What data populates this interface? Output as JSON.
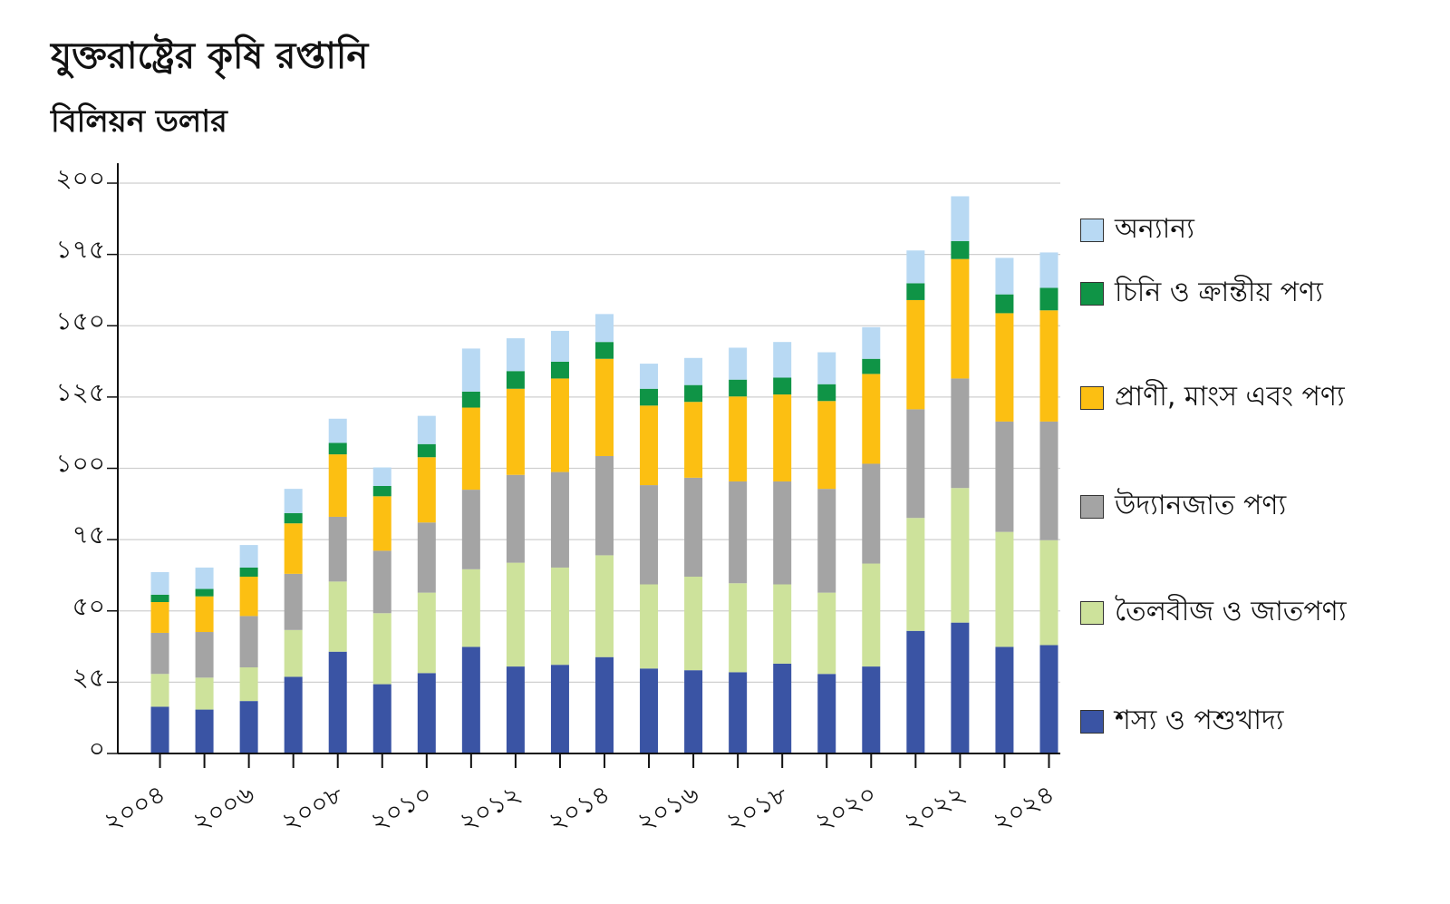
{
  "header": {
    "title": "যুক্তরাষ্ট্রের কৃষি রপ্তানি",
    "subtitle": "বিলিয়ন ডলার"
  },
  "chart_data": {
    "type": "bar",
    "stacked": true,
    "title": "যুক্তরাষ্ট্রের কৃষি রপ্তানি",
    "subtitle": "বিলিয়ন ডলার",
    "xlabel": "",
    "ylabel": "বিলিয়ন ডলার",
    "ylim": [
      0,
      200
    ],
    "yticks": [
      0,
      25,
      50,
      75,
      100,
      125,
      150,
      175,
      200
    ],
    "ytick_labels": [
      "০",
      "২৫",
      "৫০",
      "৭৫",
      "১০০",
      "১২৫",
      "১৫০",
      "১৭৫",
      "২০০"
    ],
    "grid": true,
    "legend_position": "right",
    "categories": [
      "2004",
      "2005",
      "2006",
      "2007",
      "2008",
      "2009",
      "2010",
      "2011",
      "2012",
      "2013",
      "2014",
      "2015",
      "2016",
      "2017",
      "2018",
      "2019",
      "2020",
      "2021",
      "2022",
      "2023",
      "2024"
    ],
    "xtick_labels": [
      "২০০৪",
      "",
      "২০০৬",
      "",
      "২০০৮",
      "",
      "২০১০",
      "",
      "২০১২",
      "",
      "২০১৪",
      "",
      "২০১৬",
      "",
      "২০১৮",
      "",
      "২০২০",
      "",
      "২০২২",
      "",
      "২০২৪"
    ],
    "series": [
      {
        "name": "শস্য ও পশুখাদ্য",
        "color": "#3a54a4",
        "values": [
          16.4,
          15.4,
          18.4,
          26.9,
          35.7,
          24.3,
          28.2,
          37.4,
          30.5,
          31.1,
          33.8,
          29.8,
          29.2,
          28.5,
          31.5,
          27.9,
          30.5,
          43.0,
          45.9,
          37.4,
          38.0
        ]
      },
      {
        "name": "তৈলবীজ ও জাতপণ্য",
        "color": "#cde29b",
        "values": [
          11.5,
          11.2,
          11.8,
          16.4,
          24.6,
          24.9,
          28.2,
          27.2,
          36.4,
          34.1,
          35.7,
          29.5,
          32.8,
          31.2,
          27.8,
          28.5,
          36.1,
          39.6,
          47.2,
          40.3,
          36.8
        ]
      },
      {
        "name": "উদ্যানজাত পণ্য",
        "color": "#a4a4a4",
        "values": [
          14.4,
          16.0,
          18.0,
          19.7,
          22.7,
          21.9,
          24.6,
          27.9,
          30.8,
          33.5,
          34.8,
          34.8,
          34.7,
          35.7,
          36.1,
          36.4,
          35.0,
          38.1,
          38.4,
          38.7,
          41.6
        ]
      },
      {
        "name": "প্রাণী, মাংস এবং পণ্য",
        "color": "#fcbf12",
        "values": [
          10.8,
          12.5,
          13.8,
          17.7,
          21.9,
          19.1,
          22.9,
          28.8,
          30.2,
          32.8,
          34.1,
          27.9,
          26.6,
          29.8,
          30.5,
          30.8,
          31.5,
          38.3,
          41.9,
          38.0,
          39.0
        ]
      },
      {
        "name": "চিনি ও ক্রান্তীয় পণ্য",
        "color": "#0f9446",
        "values": [
          2.6,
          2.6,
          3.2,
          3.6,
          4.0,
          3.6,
          4.6,
          5.6,
          6.2,
          5.9,
          5.9,
          5.9,
          5.9,
          5.9,
          5.9,
          5.9,
          5.3,
          5.9,
          6.3,
          6.6,
          7.9
        ]
      },
      {
        "name": "অন্যান্য",
        "color": "#b8d9f3",
        "values": [
          7.9,
          7.5,
          7.9,
          8.5,
          8.5,
          6.5,
          9.9,
          15.1,
          11.5,
          10.8,
          9.8,
          8.8,
          9.5,
          11.2,
          12.5,
          11.2,
          11.1,
          11.5,
          15.7,
          12.8,
          12.4
        ]
      }
    ]
  },
  "legend": {
    "items": [
      {
        "label": "অন্যান্য",
        "color": "#b8d9f3"
      },
      {
        "label": "চিনি ও ক্রান্তীয় পণ্য",
        "color": "#0f9446"
      },
      {
        "label": "প্রাণী, মাংস এবং পণ্য",
        "color": "#fcbf12"
      },
      {
        "label": "উদ্যানজাত পণ্য",
        "color": "#a4a4a4"
      },
      {
        "label": "তৈলবীজ ও জাতপণ্য",
        "color": "#cde29b"
      },
      {
        "label": "শস্য ও পশুখাদ্য",
        "color": "#3a54a4"
      }
    ]
  }
}
